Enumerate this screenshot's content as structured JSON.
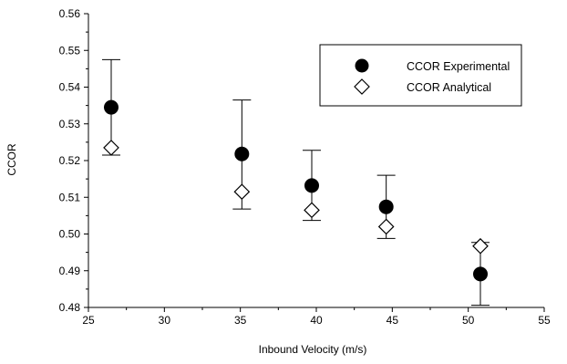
{
  "chart_data": {
    "type": "scatter",
    "title": "",
    "xlabel": "Inbound Velocity (m/s)",
    "ylabel": "CCOR",
    "xlim": [
      25,
      55
    ],
    "ylim": [
      0.48,
      0.56
    ],
    "x_ticks": [
      25,
      30,
      35,
      40,
      45,
      50,
      55
    ],
    "y_ticks": [
      0.48,
      0.49,
      0.5,
      0.51,
      0.52,
      0.53,
      0.54,
      0.55,
      0.56
    ],
    "x_tick_labels": [
      "25",
      "30",
      "35",
      "40",
      "45",
      "50",
      "55"
    ],
    "y_tick_labels": [
      "0.48",
      "0.49",
      "0.50",
      "0.51",
      "0.52",
      "0.53",
      "0.54",
      "0.55",
      "0.56"
    ],
    "grid": false,
    "legend_position": "top-right",
    "series": [
      {
        "name": "CCOR Experimental",
        "marker": "filled-circle",
        "color": "#000000",
        "points": [
          {
            "x": 26.5,
            "y": 0.5345,
            "err_low": 0.5215,
            "err_high": 0.5475
          },
          {
            "x": 35.1,
            "y": 0.5218,
            "err_low": 0.5068,
            "err_high": 0.5365
          },
          {
            "x": 39.7,
            "y": 0.5132,
            "err_low": 0.5037,
            "err_high": 0.5228
          },
          {
            "x": 44.6,
            "y": 0.5074,
            "err_low": 0.4988,
            "err_high": 0.516
          },
          {
            "x": 50.8,
            "y": 0.4891,
            "err_low": 0.4806,
            "err_high": 0.4977
          }
        ]
      },
      {
        "name": "CCOR Analytical",
        "marker": "open-diamond",
        "color": "#000000",
        "points": [
          {
            "x": 26.5,
            "y": 0.5235
          },
          {
            "x": 35.1,
            "y": 0.5115
          },
          {
            "x": 39.7,
            "y": 0.5065
          },
          {
            "x": 44.6,
            "y": 0.502
          },
          {
            "x": 50.8,
            "y": 0.4967
          }
        ]
      }
    ]
  }
}
